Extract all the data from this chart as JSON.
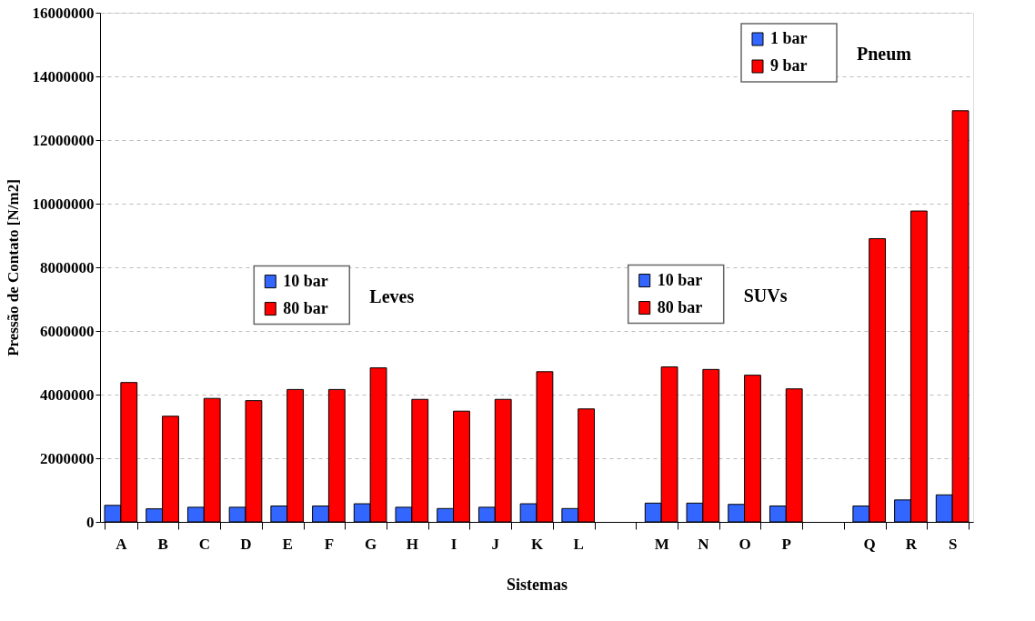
{
  "chart_data": {
    "type": "bar",
    "xlabel": "Sistemas",
    "ylabel": "Pressão de Contato [N/m2]",
    "categories": [
      "A",
      "B",
      "C",
      "D",
      "E",
      "F",
      "G",
      "H",
      "I",
      "J",
      "K",
      "L",
      null,
      "M",
      "N",
      "O",
      "P",
      null,
      "Q",
      "R",
      "S"
    ],
    "series": [
      {
        "name": "10 bar",
        "color": "#3366ff",
        "values": [
          520000,
          410000,
          460000,
          460000,
          500000,
          500000,
          570000,
          460000,
          420000,
          460000,
          570000,
          420000,
          null,
          null,
          null,
          null,
          null,
          null,
          null,
          null,
          null
        ]
      },
      {
        "name": "80 bar",
        "color": "#ff0000",
        "values": [
          4380000,
          3320000,
          3880000,
          3810000,
          4160000,
          4160000,
          4840000,
          3850000,
          3480000,
          3850000,
          4720000,
          3550000,
          null,
          null,
          null,
          null,
          null,
          null,
          null,
          null,
          null
        ]
      },
      {
        "name": "10 bar",
        "color": "#3366ff",
        "values": [
          null,
          null,
          null,
          null,
          null,
          null,
          null,
          null,
          null,
          null,
          null,
          null,
          null,
          590000,
          590000,
          550000,
          500000,
          null,
          null,
          null,
          null
        ]
      },
      {
        "name": "80 bar",
        "color": "#ff0000",
        "values": [
          null,
          null,
          null,
          null,
          null,
          null,
          null,
          null,
          null,
          null,
          null,
          null,
          null,
          4870000,
          4790000,
          4610000,
          4180000,
          null,
          null,
          null,
          null
        ]
      },
      {
        "name": "1 bar",
        "color": "#3366ff",
        "values": [
          null,
          null,
          null,
          null,
          null,
          null,
          null,
          null,
          null,
          null,
          null,
          null,
          null,
          null,
          null,
          null,
          null,
          null,
          500000,
          690000,
          850000
        ]
      },
      {
        "name": "9 bar",
        "color": "#ff0000",
        "values": [
          null,
          null,
          null,
          null,
          null,
          null,
          null,
          null,
          null,
          null,
          null,
          null,
          null,
          null,
          null,
          null,
          null,
          null,
          8900000,
          9770000,
          12920000
        ]
      }
    ],
    "annotations": [
      "Leves",
      "SUVs",
      "Pneum"
    ],
    "ylim": [
      0,
      16000000
    ],
    "yticks": [
      0,
      2000000,
      4000000,
      6000000,
      8000000,
      10000000,
      12000000,
      14000000,
      16000000
    ],
    "grid": "y",
    "legend": "top"
  }
}
